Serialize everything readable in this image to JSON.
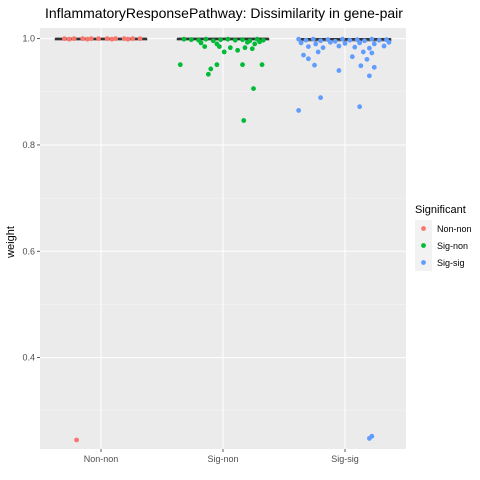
{
  "chart_data": {
    "type": "boxplot-jitter",
    "title": "InflammatoryResponsePathway: Dissimilarity in gene-pair",
    "xlabel": "",
    "ylabel": "weight",
    "categories": [
      "Non-non",
      "Sig-non",
      "Sig-sig"
    ],
    "y_ticks": [
      0.4,
      0.6,
      0.8,
      1.0
    ],
    "y_tick_labels": [
      "0.4",
      "0.6",
      "0.8",
      "1.0"
    ],
    "ylim": [
      0.228,
      1.02
    ],
    "grid": true,
    "legend": {
      "title": "Significant",
      "placement": "right",
      "entries": [
        "Non-non",
        "Sig-non",
        "Sig-sig"
      ]
    },
    "colors": {
      "Non-non": "#F8766D",
      "Sig-non": "#00BA38",
      "Sig-sig": "#619CFF",
      "panel": "#EBEBEB",
      "grid_major": "#FFFFFF",
      "box": "#333333"
    },
    "boxes": [
      {
        "category": "Non-non",
        "q1": 1.0,
        "median": 1.0,
        "q3": 1.0
      },
      {
        "category": "Sig-non",
        "q1": 0.998,
        "median": 1.0,
        "q3": 1.0
      },
      {
        "category": "Sig-sig",
        "q1": 0.996,
        "median": 0.999,
        "q3": 1.0
      }
    ],
    "series": [
      {
        "name": "Non-non",
        "category": "Non-non",
        "points": [
          {
            "jitter": -0.3,
            "y": 1.0
          },
          {
            "jitter": -0.22,
            "y": 1.0
          },
          {
            "jitter": -0.15,
            "y": 1.0
          },
          {
            "jitter": -0.08,
            "y": 1.0
          },
          {
            "jitter": -0.02,
            "y": 1.0
          },
          {
            "jitter": 0.05,
            "y": 1.0
          },
          {
            "jitter": 0.12,
            "y": 1.0
          },
          {
            "jitter": 0.19,
            "y": 1.0
          },
          {
            "jitter": 0.26,
            "y": 1.0
          },
          {
            "jitter": 0.32,
            "y": 1.0
          },
          {
            "jitter": -0.26,
            "y": 0.999
          },
          {
            "jitter": 0.09,
            "y": 0.999
          },
          {
            "jitter": 0.22,
            "y": 0.999
          },
          {
            "jitter": -0.11,
            "y": 0.999
          },
          {
            "jitter": -0.2,
            "y": 0.245
          }
        ]
      },
      {
        "name": "Sig-non",
        "category": "Sig-non",
        "points": [
          {
            "jitter": -0.32,
            "y": 0.999
          },
          {
            "jitter": -0.26,
            "y": 0.998
          },
          {
            "jitter": -0.2,
            "y": 0.997
          },
          {
            "jitter": -0.14,
            "y": 0.999
          },
          {
            "jitter": -0.08,
            "y": 0.996
          },
          {
            "jitter": -0.02,
            "y": 0.998
          },
          {
            "jitter": 0.04,
            "y": 0.999
          },
          {
            "jitter": 0.1,
            "y": 0.997
          },
          {
            "jitter": 0.16,
            "y": 0.998
          },
          {
            "jitter": 0.22,
            "y": 0.996
          },
          {
            "jitter": 0.28,
            "y": 0.999
          },
          {
            "jitter": 0.33,
            "y": 0.997
          },
          {
            "jitter": -0.18,
            "y": 0.992
          },
          {
            "jitter": 0.2,
            "y": 0.993
          },
          {
            "jitter": -0.05,
            "y": 0.99
          },
          {
            "jitter": -0.15,
            "y": 0.985
          },
          {
            "jitter": -0.03,
            "y": 0.985
          },
          {
            "jitter": 0.06,
            "y": 0.983
          },
          {
            "jitter": 0.18,
            "y": 0.983
          },
          {
            "jitter": 0.26,
            "y": 0.99
          },
          {
            "jitter": 0.3,
            "y": 0.994
          },
          {
            "jitter": 0.01,
            "y": 0.975
          },
          {
            "jitter": 0.12,
            "y": 0.978
          },
          {
            "jitter": 0.24,
            "y": 0.981
          },
          {
            "jitter": -0.35,
            "y": 0.951
          },
          {
            "jitter": -0.05,
            "y": 0.951
          },
          {
            "jitter": 0.16,
            "y": 0.951
          },
          {
            "jitter": 0.32,
            "y": 0.951
          },
          {
            "jitter": -0.1,
            "y": 0.943
          },
          {
            "jitter": -0.12,
            "y": 0.933
          },
          {
            "jitter": 0.25,
            "y": 0.906
          },
          {
            "jitter": 0.17,
            "y": 0.846
          }
        ]
      },
      {
        "name": "Sig-sig",
        "category": "Sig-sig",
        "points": [
          {
            "jitter": -0.38,
            "y": 0.999
          },
          {
            "jitter": -0.32,
            "y": 0.997
          },
          {
            "jitter": -0.26,
            "y": 0.999
          },
          {
            "jitter": -0.2,
            "y": 0.996
          },
          {
            "jitter": -0.14,
            "y": 0.998
          },
          {
            "jitter": -0.08,
            "y": 0.995
          },
          {
            "jitter": -0.02,
            "y": 0.999
          },
          {
            "jitter": 0.04,
            "y": 0.997
          },
          {
            "jitter": 0.1,
            "y": 0.998
          },
          {
            "jitter": 0.16,
            "y": 0.996
          },
          {
            "jitter": 0.22,
            "y": 0.999
          },
          {
            "jitter": 0.28,
            "y": 0.997
          },
          {
            "jitter": 0.34,
            "y": 0.998
          },
          {
            "jitter": -0.36,
            "y": 0.992
          },
          {
            "jitter": -0.24,
            "y": 0.99
          },
          {
            "jitter": -0.12,
            "y": 0.993
          },
          {
            "jitter": 0.0,
            "y": 0.991
          },
          {
            "jitter": 0.12,
            "y": 0.992
          },
          {
            "jitter": 0.24,
            "y": 0.99
          },
          {
            "jitter": 0.36,
            "y": 0.993
          },
          {
            "jitter": -0.3,
            "y": 0.985
          },
          {
            "jitter": -0.18,
            "y": 0.983
          },
          {
            "jitter": -0.05,
            "y": 0.986
          },
          {
            "jitter": 0.08,
            "y": 0.984
          },
          {
            "jitter": 0.2,
            "y": 0.982
          },
          {
            "jitter": 0.32,
            "y": 0.986
          },
          {
            "jitter": -0.22,
            "y": 0.975
          },
          {
            "jitter": 0.15,
            "y": 0.975
          },
          {
            "jitter": 0.22,
            "y": 0.973
          },
          {
            "jitter": -0.34,
            "y": 0.969
          },
          {
            "jitter": -0.3,
            "y": 0.962
          },
          {
            "jitter": -0.25,
            "y": 0.95
          },
          {
            "jitter": 0.06,
            "y": 0.966
          },
          {
            "jitter": 0.18,
            "y": 0.961
          },
          {
            "jitter": 0.13,
            "y": 0.949
          },
          {
            "jitter": -0.05,
            "y": 0.94
          },
          {
            "jitter": 0.24,
            "y": 0.946
          },
          {
            "jitter": 0.2,
            "y": 0.93
          },
          {
            "jitter": -0.2,
            "y": 0.889
          },
          {
            "jitter": 0.12,
            "y": 0.872
          },
          {
            "jitter": -0.38,
            "y": 0.865
          },
          {
            "jitter": 0.22,
            "y": 0.252
          },
          {
            "jitter": 0.2,
            "y": 0.248
          }
        ]
      }
    ]
  }
}
